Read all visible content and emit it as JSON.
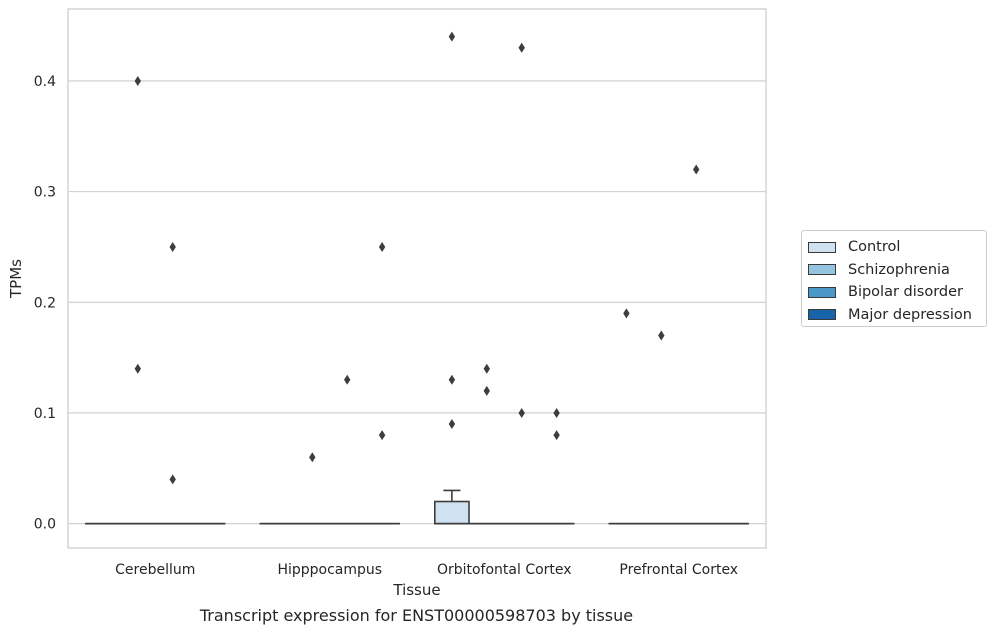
{
  "caption": "Transcript expression for ENST00000598703 by tissue",
  "legend": {
    "items": [
      {
        "label": "Control",
        "color": "#d0e1f2"
      },
      {
        "label": "Schizophrenia",
        "color": "#94c4df"
      },
      {
        "label": "Bipolar disorder",
        "color": "#4a98c9"
      },
      {
        "label": "Major depression",
        "color": "#1764ab"
      }
    ]
  },
  "chart_data": {
    "type": "box",
    "xlabel": "Tissue",
    "ylabel": "TPMs",
    "ylim": [
      -0.022,
      0.465
    ],
    "yticks": [
      0.0,
      0.1,
      0.2,
      0.3,
      0.4
    ],
    "ytick_labels": [
      "0.0",
      "0.1",
      "0.2",
      "0.3",
      "0.4"
    ],
    "grid": "horizontal",
    "legend_position": "right",
    "categories": [
      "Cerebellum",
      "Hipppocampus",
      "Orbitofontal Cortex",
      "Prefrontal Cortex"
    ],
    "series": [
      {
        "name": "Control",
        "boxes": [
          {
            "q1": 0.0,
            "median": 0.0,
            "q3": 0.0,
            "whisker_low": 0.0,
            "whisker_high": 0.0,
            "outliers": []
          },
          {
            "q1": 0.0,
            "median": 0.0,
            "q3": 0.0,
            "whisker_low": 0.0,
            "whisker_high": 0.0,
            "outliers": []
          },
          {
            "q1": 0.0,
            "median": 0.0,
            "q3": 0.02,
            "whisker_low": 0.0,
            "whisker_high": 0.03,
            "outliers": [
              0.44,
              0.13,
              0.09
            ]
          },
          {
            "q1": 0.0,
            "median": 0.0,
            "q3": 0.0,
            "whisker_low": 0.0,
            "whisker_high": 0.0,
            "outliers": [
              0.19
            ]
          }
        ]
      },
      {
        "name": "Schizophrenia",
        "boxes": [
          {
            "q1": 0.0,
            "median": 0.0,
            "q3": 0.0,
            "whisker_low": 0.0,
            "whisker_high": 0.0,
            "outliers": [
              0.4,
              0.14
            ]
          },
          {
            "q1": 0.0,
            "median": 0.0,
            "q3": 0.0,
            "whisker_low": 0.0,
            "whisker_high": 0.0,
            "outliers": [
              0.06
            ]
          },
          {
            "q1": 0.0,
            "median": 0.0,
            "q3": 0.0,
            "whisker_low": 0.0,
            "whisker_high": 0.0,
            "outliers": [
              0.14,
              0.12
            ]
          },
          {
            "q1": 0.0,
            "median": 0.0,
            "q3": 0.0,
            "whisker_low": 0.0,
            "whisker_high": 0.0,
            "outliers": [
              0.17
            ]
          }
        ]
      },
      {
        "name": "Bipolar disorder",
        "boxes": [
          {
            "q1": 0.0,
            "median": 0.0,
            "q3": 0.0,
            "whisker_low": 0.0,
            "whisker_high": 0.0,
            "outliers": [
              0.25,
              0.04
            ]
          },
          {
            "q1": 0.0,
            "median": 0.0,
            "q3": 0.0,
            "whisker_low": 0.0,
            "whisker_high": 0.0,
            "outliers": [
              0.13
            ]
          },
          {
            "q1": 0.0,
            "median": 0.0,
            "q3": 0.0,
            "whisker_low": 0.0,
            "whisker_high": 0.0,
            "outliers": [
              0.43,
              0.1
            ]
          },
          {
            "q1": 0.0,
            "median": 0.0,
            "q3": 0.0,
            "whisker_low": 0.0,
            "whisker_high": 0.0,
            "outliers": [
              0.32
            ]
          }
        ]
      },
      {
        "name": "Major depression",
        "boxes": [
          {
            "q1": 0.0,
            "median": 0.0,
            "q3": 0.0,
            "whisker_low": 0.0,
            "whisker_high": 0.0,
            "outliers": []
          },
          {
            "q1": 0.0,
            "median": 0.0,
            "q3": 0.0,
            "whisker_low": 0.0,
            "whisker_high": 0.0,
            "outliers": [
              0.25,
              0.08
            ]
          },
          {
            "q1": 0.0,
            "median": 0.0,
            "q3": 0.0,
            "whisker_low": 0.0,
            "whisker_high": 0.0,
            "outliers": [
              0.1,
              0.08
            ]
          },
          {
            "q1": 0.0,
            "median": 0.0,
            "q3": 0.0,
            "whisker_low": 0.0,
            "whisker_high": 0.0,
            "outliers": []
          }
        ]
      }
    ]
  }
}
